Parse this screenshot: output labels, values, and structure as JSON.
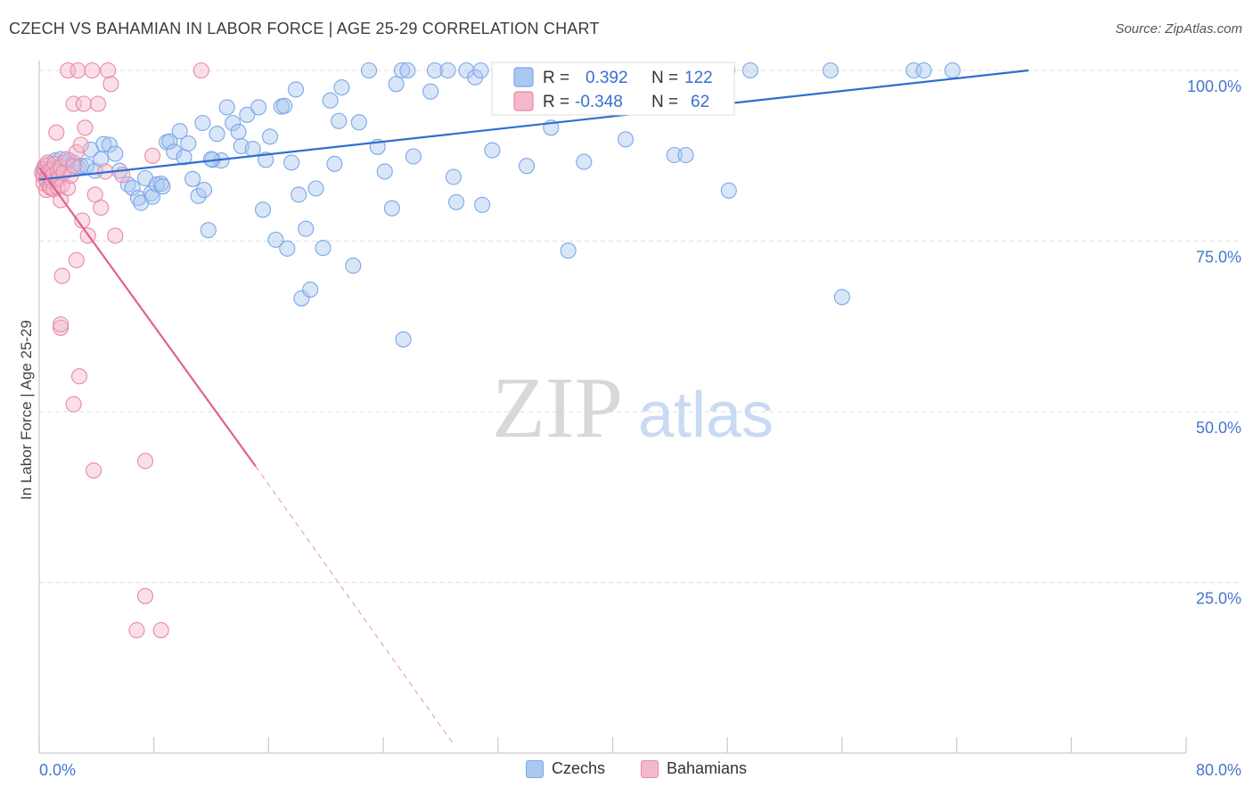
{
  "title": "CZECH VS BAHAMIAN IN LABOR FORCE | AGE 25-29 CORRELATION CHART",
  "source": "Source: ZipAtlas.com",
  "watermark": {
    "zip": "ZIP",
    "atlas": "atlas"
  },
  "chart_data": {
    "type": "scatter",
    "xlabel": "",
    "ylabel": "In Labor Force | Age 25-29",
    "xlim": [
      0,
      80
    ],
    "ylim": [
      0,
      100
    ],
    "x_tick_labels": [
      "0.0%",
      "80.0%"
    ],
    "y_ticks": [
      25,
      50,
      75,
      100
    ],
    "y_tick_labels": [
      "25.0%",
      "50.0%",
      "75.0%",
      "100.0%"
    ],
    "grid": true,
    "legend_position": "top-center",
    "legend": [
      {
        "name": "Czechs",
        "r_label": "R =",
        "r": "0.392",
        "n_label": "N =",
        "n": "122",
        "color": "#7aa7e8",
        "fill": "#aac8f0"
      },
      {
        "name": "Bahamians",
        "r_label": "R =",
        "r": "-0.348",
        "n_label": "N =",
        "n": "62",
        "color": "#e889a8",
        "fill": "#f5b8cb"
      }
    ],
    "series": [
      {
        "name": "Czechs",
        "color": "#7aa7e8",
        "trend": {
          "x0": 0,
          "y0": 84.0,
          "x1": 69,
          "y1": 100,
          "color": "#2f6fd1"
        },
        "points": [
          [
            0.3,
            85.5
          ],
          [
            0.5,
            84.5
          ],
          [
            0.7,
            86.2
          ],
          [
            0.9,
            84.0
          ],
          [
            1.1,
            86.8
          ],
          [
            1.3,
            85.8
          ],
          [
            1.5,
            87.0
          ],
          [
            1.7,
            86.5
          ],
          [
            1.9,
            85.7
          ],
          [
            2.1,
            86.8
          ],
          [
            2.4,
            86.5
          ],
          [
            2.7,
            85.8
          ],
          [
            2.9,
            86.0
          ],
          [
            3.3,
            86.0
          ],
          [
            3.6,
            88.4
          ],
          [
            3.9,
            85.3
          ],
          [
            4.3,
            87.0
          ],
          [
            4.5,
            89.2
          ],
          [
            4.9,
            89.1
          ],
          [
            5.3,
            87.8
          ],
          [
            5.6,
            85.3
          ],
          [
            6.2,
            83.3
          ],
          [
            6.5,
            82.8
          ],
          [
            6.9,
            81.3
          ],
          [
            7.1,
            80.6
          ],
          [
            7.4,
            84.2
          ],
          [
            7.8,
            82.0
          ],
          [
            7.9,
            81.5
          ],
          [
            8.2,
            83.3
          ],
          [
            8.5,
            83.4
          ],
          [
            8.6,
            83.0
          ],
          [
            8.9,
            89.5
          ],
          [
            9.1,
            89.6
          ],
          [
            9.4,
            88.1
          ],
          [
            9.8,
            91.1
          ],
          [
            10.1,
            87.3
          ],
          [
            10.4,
            89.3
          ],
          [
            10.7,
            84.1
          ],
          [
            11.1,
            81.6
          ],
          [
            11.4,
            92.3
          ],
          [
            11.5,
            82.5
          ],
          [
            11.8,
            76.6
          ],
          [
            12.1,
            86.9
          ],
          [
            12.4,
            90.7
          ],
          [
            12.7,
            86.8
          ],
          [
            13.1,
            94.6
          ],
          [
            13.5,
            92.3
          ],
          [
            13.9,
            91.0
          ],
          [
            14.1,
            88.9
          ],
          [
            14.5,
            93.5
          ],
          [
            14.9,
            88.5
          ],
          [
            15.3,
            94.6
          ],
          [
            15.6,
            79.6
          ],
          [
            15.8,
            86.9
          ],
          [
            16.1,
            90.3
          ],
          [
            16.5,
            75.2
          ],
          [
            16.9,
            94.7
          ],
          [
            17.1,
            94.8
          ],
          [
            17.3,
            73.9
          ],
          [
            17.9,
            97.2
          ],
          [
            18.1,
            81.8
          ],
          [
            18.3,
            66.6
          ],
          [
            18.6,
            76.8
          ],
          [
            18.9,
            67.9
          ],
          [
            19.3,
            82.7
          ],
          [
            19.8,
            74.0
          ],
          [
            20.3,
            95.6
          ],
          [
            20.6,
            86.3
          ],
          [
            20.9,
            92.6
          ],
          [
            21.1,
            97.5
          ],
          [
            21.9,
            71.4
          ],
          [
            22.3,
            92.4
          ],
          [
            23.0,
            100.0
          ],
          [
            23.6,
            88.8
          ],
          [
            24.1,
            85.2
          ],
          [
            24.6,
            79.8
          ],
          [
            24.9,
            98.0
          ],
          [
            25.3,
            100.0
          ],
          [
            25.7,
            100.0
          ],
          [
            25.4,
            60.6
          ],
          [
            26.1,
            87.4
          ],
          [
            27.3,
            96.9
          ],
          [
            27.6,
            100.0
          ],
          [
            28.5,
            100.0
          ],
          [
            28.9,
            84.4
          ],
          [
            29.1,
            80.7
          ],
          [
            29.8,
            100.0
          ],
          [
            30.4,
            99.0
          ],
          [
            30.8,
            100.0
          ],
          [
            30.9,
            80.3
          ],
          [
            31.6,
            88.3
          ],
          [
            32.1,
            100.0
          ],
          [
            33.0,
            100.0
          ],
          [
            34.0,
            86.0
          ],
          [
            34.8,
            100.0
          ],
          [
            35.9,
            100.0
          ],
          [
            35.7,
            91.6
          ],
          [
            36.9,
            73.6
          ],
          [
            37.0,
            100.0
          ],
          [
            37.4,
            100.0
          ],
          [
            37.9,
            100.0
          ],
          [
            38.0,
            86.6
          ],
          [
            39.3,
            100.0
          ],
          [
            40.3,
            100.0
          ],
          [
            40.9,
            89.9
          ],
          [
            42.1,
            100.0
          ],
          [
            43.7,
            100.0
          ],
          [
            44.3,
            87.6
          ],
          [
            45.0,
            100.0
          ],
          [
            45.1,
            87.6
          ],
          [
            46.3,
            100.0
          ],
          [
            47.1,
            100.0
          ],
          [
            48.0,
            100.0
          ],
          [
            48.1,
            82.4
          ],
          [
            49.6,
            100.0
          ],
          [
            55.2,
            100.0
          ],
          [
            56.0,
            66.8
          ],
          [
            61.0,
            100.0
          ],
          [
            61.7,
            100.0
          ],
          [
            63.7,
            100.0
          ],
          [
            12.0,
            87.0
          ],
          [
            17.6,
            86.5
          ]
        ]
      },
      {
        "name": "Bahamians",
        "color": "#e889a8",
        "trend": {
          "x0": 0,
          "y0": 85.8,
          "x1": 15.1,
          "y1": 42.0,
          "dash_x1": 29.0,
          "dash_y1": 1.0,
          "color": "#e0628f"
        },
        "points": [
          [
            0.2,
            85.0
          ],
          [
            0.3,
            84.5
          ],
          [
            0.3,
            83.5
          ],
          [
            0.4,
            86.0
          ],
          [
            0.4,
            85.5
          ],
          [
            0.5,
            84.0
          ],
          [
            0.5,
            82.5
          ],
          [
            0.6,
            84.8
          ],
          [
            0.6,
            86.5
          ],
          [
            0.7,
            85.3
          ],
          [
            0.7,
            83.0
          ],
          [
            0.8,
            84.3
          ],
          [
            0.8,
            82.8
          ],
          [
            0.9,
            85.5
          ],
          [
            0.9,
            83.8
          ],
          [
            1.0,
            84.8
          ],
          [
            1.0,
            82.6
          ],
          [
            1.1,
            86.3
          ],
          [
            1.2,
            83.9
          ],
          [
            1.3,
            85.2
          ],
          [
            1.3,
            82.9
          ],
          [
            1.4,
            84.2
          ],
          [
            1.5,
            85.8
          ],
          [
            1.5,
            81.0
          ],
          [
            1.6,
            83.2
          ],
          [
            1.7,
            85.0
          ],
          [
            1.9,
            87.0
          ],
          [
            2.0,
            82.8
          ],
          [
            2.2,
            84.6
          ],
          [
            2.4,
            86.0
          ],
          [
            1.2,
            90.9
          ],
          [
            1.6,
            69.9
          ],
          [
            1.5,
            62.3
          ],
          [
            1.5,
            62.8
          ],
          [
            2.0,
            100.0
          ],
          [
            2.4,
            95.1
          ],
          [
            2.7,
            100.0
          ],
          [
            2.6,
            88.0
          ],
          [
            2.9,
            89.1
          ],
          [
            3.0,
            78.0
          ],
          [
            2.6,
            72.2
          ],
          [
            2.4,
            51.1
          ],
          [
            2.8,
            55.2
          ],
          [
            3.1,
            95.1
          ],
          [
            3.2,
            91.6
          ],
          [
            3.4,
            75.8
          ],
          [
            3.7,
            100.0
          ],
          [
            3.9,
            81.8
          ],
          [
            4.1,
            95.1
          ],
          [
            3.8,
            41.4
          ],
          [
            4.3,
            79.9
          ],
          [
            4.8,
            100.0
          ],
          [
            5.0,
            98.0
          ],
          [
            5.3,
            75.8
          ],
          [
            5.8,
            84.7
          ],
          [
            7.4,
            23.0
          ],
          [
            7.9,
            87.5
          ],
          [
            8.5,
            18.0
          ],
          [
            6.8,
            18.0
          ],
          [
            7.4,
            42.8
          ],
          [
            11.3,
            100.0
          ],
          [
            4.6,
            85.2
          ]
        ]
      }
    ]
  }
}
